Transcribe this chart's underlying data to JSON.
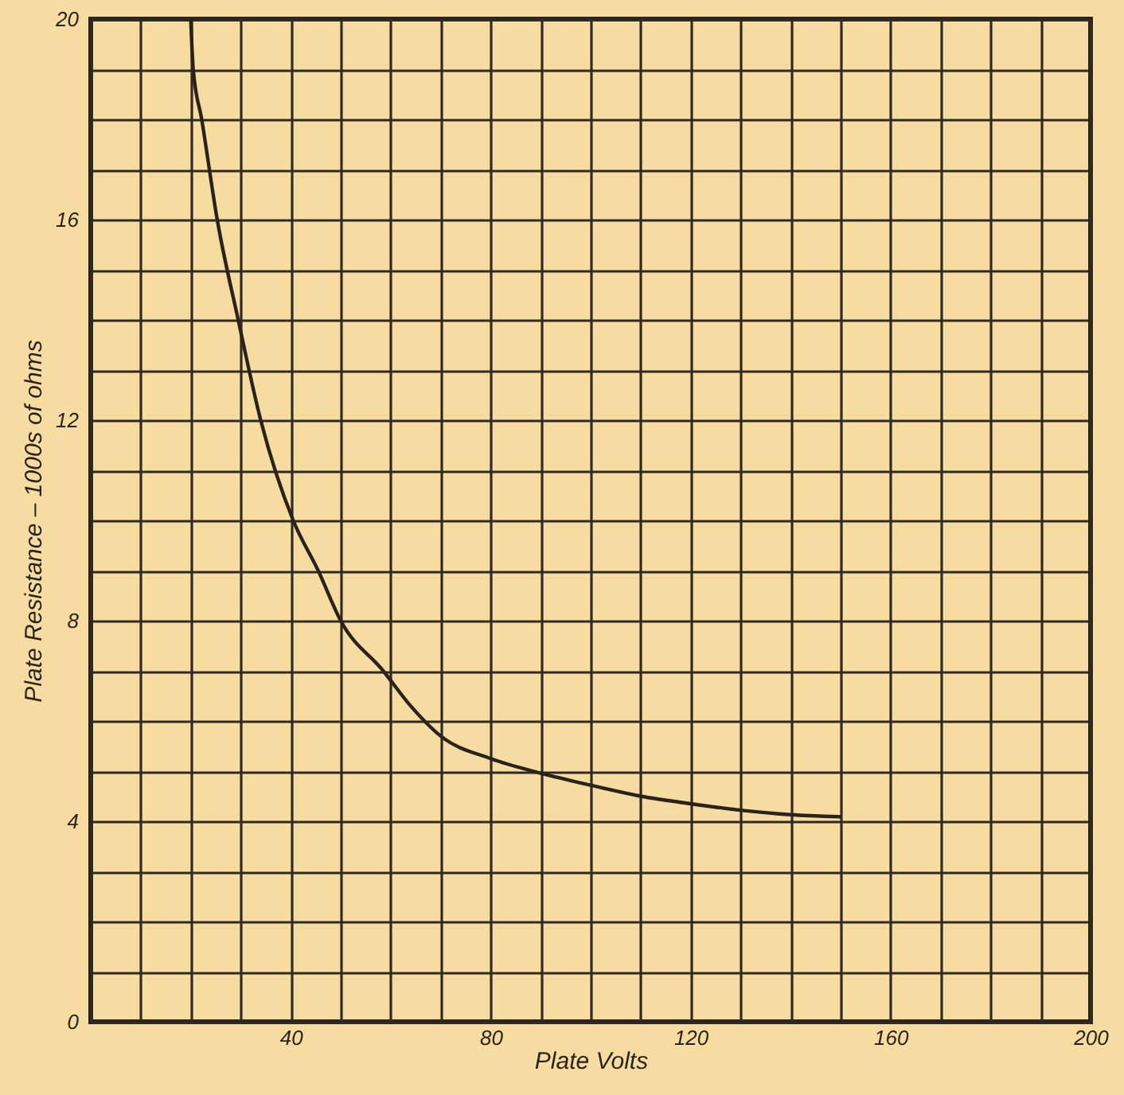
{
  "chart_data": {
    "type": "line",
    "xlabel": "Plate Volts",
    "ylabel": "Plate Resistance – 1000s of ohms",
    "x": [
      20,
      20.5,
      22.2,
      25.3,
      29.5,
      34,
      40.5,
      45.5,
      50,
      58.5,
      64,
      70,
      80,
      90,
      100,
      110,
      120,
      130,
      140,
      150
    ],
    "series": [
      {
        "color": "#2a231c",
        "values": [
          20,
          19,
          18,
          16,
          14,
          12,
          10,
          9,
          8,
          7,
          6.3,
          5.7,
          5.25,
          4.96,
          4.72,
          4.5,
          4.35,
          4.22,
          4.13,
          4.09
        ]
      }
    ],
    "xlim": [
      0,
      200
    ],
    "ylim": [
      0,
      20
    ],
    "xticks": [
      {
        "value": 0,
        "label": null
      },
      {
        "value": 10,
        "label": null
      },
      {
        "value": 20,
        "label": null
      },
      {
        "value": 30,
        "label": null
      },
      40,
      {
        "value": 50,
        "label": null
      },
      {
        "value": 60,
        "label": null
      },
      {
        "value": 70,
        "label": null
      },
      80,
      {
        "value": 90,
        "label": null
      },
      {
        "value": 100,
        "label": null
      },
      {
        "value": 110,
        "label": null
      },
      120,
      {
        "value": 130,
        "label": null
      },
      {
        "value": 140,
        "label": null
      },
      {
        "value": 150,
        "label": null
      },
      160,
      {
        "value": 170,
        "label": null
      },
      {
        "value": 180,
        "label": null
      },
      {
        "value": 190,
        "label": null
      },
      200
    ],
    "yticks": [
      0,
      {
        "value": 1,
        "label": null
      },
      {
        "value": 2,
        "label": null
      },
      {
        "value": 3,
        "label": null
      },
      4,
      {
        "value": 5,
        "label": null
      },
      {
        "value": 6,
        "label": null
      },
      {
        "value": 7,
        "label": null
      },
      8,
      {
        "value": 9,
        "label": null
      },
      {
        "value": 10,
        "label": null
      },
      {
        "value": 11,
        "label": null
      },
      12,
      {
        "value": 13,
        "label": null
      },
      {
        "value": 14,
        "label": null
      },
      {
        "value": 15,
        "label": null
      },
      16,
      {
        "value": 17,
        "label": null
      },
      {
        "value": 18,
        "label": null
      },
      {
        "value": 19,
        "label": null
      },
      20
    ],
    "grid": true
  }
}
